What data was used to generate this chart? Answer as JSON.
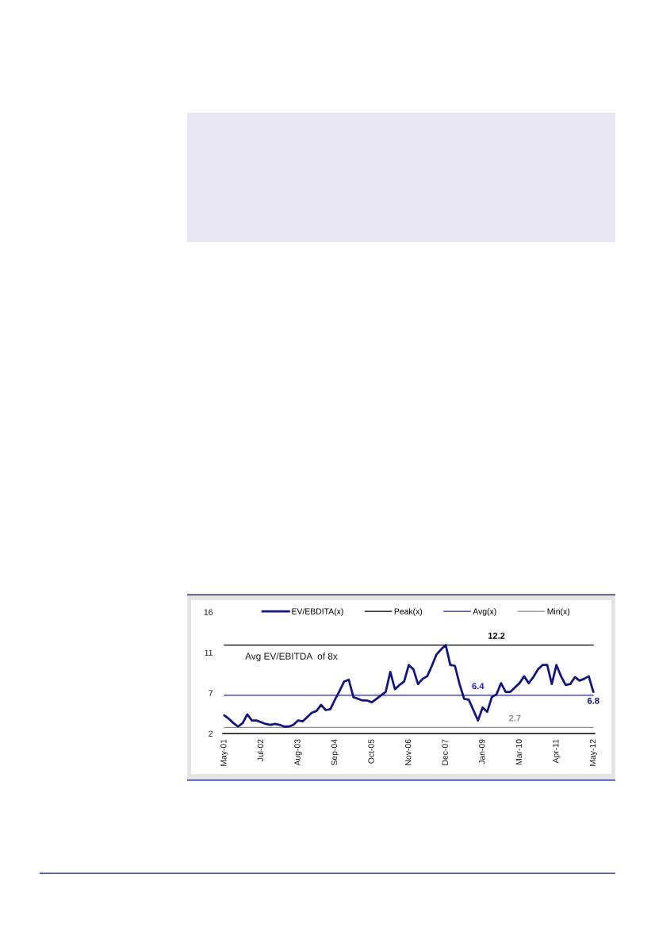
{
  "chart_data": {
    "type": "line",
    "categories": [
      "May-01",
      null,
      null,
      null,
      null,
      null,
      null,
      null,
      "Jul-02",
      null,
      null,
      null,
      null,
      null,
      null,
      null,
      "Aug-03",
      null,
      null,
      null,
      null,
      null,
      null,
      null,
      "Sep-04",
      null,
      null,
      null,
      null,
      null,
      null,
      null,
      "Oct-05",
      null,
      null,
      null,
      null,
      null,
      null,
      null,
      "Nov-06",
      null,
      null,
      null,
      null,
      null,
      null,
      null,
      "Dec-07",
      null,
      null,
      null,
      null,
      null,
      null,
      null,
      "Jan-09",
      null,
      null,
      null,
      null,
      null,
      null,
      null,
      "Mar-10",
      null,
      null,
      null,
      null,
      null,
      null,
      null,
      "Apr-11",
      null,
      null,
      null,
      null,
      null,
      null,
      null,
      "May-12"
    ],
    "ylim": [
      2,
      16
    ],
    "yticks": [
      2,
      {
        "value": 6.67,
        "label": "7"
      },
      {
        "value": 11.33,
        "label": "11"
      },
      16
    ],
    "series": [
      {
        "name": "EV/EBDITA(x)",
        "color": "#14147d",
        "values": [
          4.1,
          3.7,
          3.2,
          2.8,
          3.2,
          4.2,
          3.5,
          3.5,
          3.3,
          3.1,
          3.0,
          3.1,
          3.0,
          2.8,
          2.8,
          3.0,
          3.5,
          3.4,
          3.9,
          4.4,
          4.6,
          5.3,
          4.7,
          4.8,
          5.9,
          6.9,
          8.0,
          8.2,
          6.2,
          6.0,
          5.8,
          5.8,
          5.6,
          6.0,
          6.4,
          6.8,
          9.1,
          7.1,
          7.6,
          8.0,
          9.9,
          9.4,
          7.7,
          8.3,
          8.6,
          9.8,
          11.1,
          11.7,
          12.2,
          9.9,
          9.8,
          7.7,
          6.0,
          5.9,
          4.7,
          3.5,
          5.0,
          4.5,
          6.2,
          6.5,
          7.8,
          6.8,
          6.8,
          7.3,
          7.8,
          8.6,
          7.8,
          8.5,
          9.4,
          9.9,
          9.9,
          7.7,
          9.9,
          8.6,
          7.6,
          7.7,
          8.5,
          8.1,
          8.3,
          8.6,
          6.8
        ],
        "value_labels": [
          null,
          null,
          null,
          null,
          null,
          null,
          null,
          null,
          null,
          null,
          null,
          null,
          null,
          null,
          null,
          null,
          null,
          null,
          null,
          null,
          null,
          null,
          null,
          null,
          null,
          null,
          null,
          null,
          null,
          null,
          null,
          null,
          null,
          null,
          null,
          null,
          null,
          null,
          null,
          null,
          null,
          null,
          null,
          null,
          null,
          null,
          null,
          null,
          null,
          null,
          null,
          null,
          null,
          null,
          null,
          null,
          null,
          null,
          null,
          null,
          null,
          null,
          null,
          null,
          null,
          null,
          null,
          null,
          null,
          null,
          null,
          null,
          null,
          null,
          null,
          null,
          null,
          null,
          null,
          null,
          "6.8"
        ]
      },
      {
        "name": "Peak(x)",
        "color": "#000000",
        "values": [
          12.2,
          12.2,
          12.2,
          12.2,
          12.2,
          12.2,
          12.2,
          12.2,
          12.2,
          12.2,
          12.2,
          12.2,
          12.2,
          12.2,
          12.2,
          12.2,
          12.2,
          12.2,
          12.2,
          12.2,
          12.2,
          12.2,
          12.2,
          12.2,
          12.2,
          12.2,
          12.2,
          12.2,
          12.2,
          12.2,
          12.2,
          12.2,
          12.2,
          12.2,
          12.2,
          12.2,
          12.2,
          12.2,
          12.2,
          12.2,
          12.2,
          12.2,
          12.2,
          12.2,
          12.2,
          12.2,
          12.2,
          12.2,
          12.2,
          12.2,
          12.2,
          12.2,
          12.2,
          12.2,
          12.2,
          12.2,
          12.2,
          12.2,
          12.2,
          12.2,
          12.2,
          12.2,
          12.2,
          12.2,
          12.2,
          12.2,
          12.2,
          12.2,
          12.2,
          12.2,
          12.2,
          12.2,
          12.2,
          12.2,
          12.2,
          12.2,
          12.2,
          12.2,
          12.2,
          12.2,
          12.2
        ],
        "value_labels": [
          null,
          null,
          null,
          null,
          null,
          null,
          null,
          null,
          null,
          null,
          null,
          null,
          null,
          null,
          null,
          null,
          null,
          null,
          null,
          null,
          null,
          null,
          null,
          null,
          null,
          null,
          null,
          null,
          null,
          null,
          null,
          null,
          null,
          null,
          null,
          null,
          null,
          null,
          null,
          null,
          null,
          null,
          null,
          null,
          null,
          null,
          null,
          null,
          null,
          null,
          null,
          null,
          null,
          null,
          null,
          null,
          null,
          null,
          null,
          "12.2",
          null,
          null,
          null,
          null,
          null,
          null,
          null,
          null,
          null,
          null,
          null,
          null,
          null,
          null,
          null,
          null,
          null,
          null,
          null,
          null,
          null
        ]
      },
      {
        "name": "Avg(x)",
        "color": "#2323c8",
        "values": [
          6.4,
          6.4,
          6.4,
          6.4,
          6.4,
          6.4,
          6.4,
          6.4,
          6.4,
          6.4,
          6.4,
          6.4,
          6.4,
          6.4,
          6.4,
          6.4,
          6.4,
          6.4,
          6.4,
          6.4,
          6.4,
          6.4,
          6.4,
          6.4,
          6.4,
          6.4,
          6.4,
          6.4,
          6.4,
          6.4,
          6.4,
          6.4,
          6.4,
          6.4,
          6.4,
          6.4,
          6.4,
          6.4,
          6.4,
          6.4,
          6.4,
          6.4,
          6.4,
          6.4,
          6.4,
          6.4,
          6.4,
          6.4,
          6.4,
          6.4,
          6.4,
          6.4,
          6.4,
          6.4,
          6.4,
          6.4,
          6.4,
          6.4,
          6.4,
          6.4,
          6.4,
          6.4,
          6.4,
          6.4,
          6.4,
          6.4,
          6.4,
          6.4,
          6.4,
          6.4,
          6.4,
          6.4,
          6.4,
          6.4,
          6.4,
          6.4,
          6.4,
          6.4,
          6.4,
          6.4,
          6.4
        ],
        "value_labels": [
          null,
          null,
          null,
          null,
          null,
          null,
          null,
          null,
          null,
          null,
          null,
          null,
          null,
          null,
          null,
          null,
          null,
          null,
          null,
          null,
          null,
          null,
          null,
          null,
          null,
          null,
          null,
          null,
          null,
          null,
          null,
          null,
          null,
          null,
          null,
          null,
          null,
          null,
          null,
          null,
          null,
          null,
          null,
          null,
          null,
          null,
          null,
          null,
          null,
          null,
          null,
          null,
          null,
          null,
          null,
          "6.4",
          null,
          null,
          null,
          null,
          null,
          null,
          null,
          null,
          null,
          null,
          null,
          null,
          null,
          null,
          null,
          null,
          null,
          null,
          null,
          null,
          null,
          null,
          null,
          null,
          null
        ]
      },
      {
        "name": "Min(x)",
        "color": "#8c8c8c",
        "values": [
          2.7,
          2.7,
          2.7,
          2.7,
          2.7,
          2.7,
          2.7,
          2.7,
          2.7,
          2.7,
          2.7,
          2.7,
          2.7,
          2.7,
          2.7,
          2.7,
          2.7,
          2.7,
          2.7,
          2.7,
          2.7,
          2.7,
          2.7,
          2.7,
          2.7,
          2.7,
          2.7,
          2.7,
          2.7,
          2.7,
          2.7,
          2.7,
          2.7,
          2.7,
          2.7,
          2.7,
          2.7,
          2.7,
          2.7,
          2.7,
          2.7,
          2.7,
          2.7,
          2.7,
          2.7,
          2.7,
          2.7,
          2.7,
          2.7,
          2.7,
          2.7,
          2.7,
          2.7,
          2.7,
          2.7,
          2.7,
          2.7,
          2.7,
          2.7,
          2.7,
          2.7,
          2.7,
          2.7,
          2.7,
          2.7,
          2.7,
          2.7,
          2.7,
          2.7,
          2.7,
          2.7,
          2.7,
          2.7,
          2.7,
          2.7,
          2.7,
          2.7,
          2.7,
          2.7,
          2.7,
          2.7
        ],
        "value_labels": [
          null,
          null,
          null,
          null,
          null,
          null,
          null,
          null,
          null,
          null,
          null,
          null,
          null,
          null,
          null,
          null,
          null,
          null,
          null,
          null,
          null,
          null,
          null,
          null,
          null,
          null,
          null,
          null,
          null,
          null,
          null,
          null,
          null,
          null,
          null,
          null,
          null,
          null,
          null,
          null,
          null,
          null,
          null,
          null,
          null,
          null,
          null,
          null,
          null,
          null,
          null,
          null,
          null,
          null,
          null,
          null,
          null,
          null,
          null,
          null,
          null,
          null,
          null,
          "2.7",
          null,
          null,
          null,
          null,
          null,
          null,
          null,
          null,
          null,
          null,
          null,
          null,
          null,
          null,
          null,
          null,
          null
        ]
      }
    ],
    "annotations": [
      "Avg EV/EBITDA  of 8x"
    ],
    "legend": "top"
  }
}
